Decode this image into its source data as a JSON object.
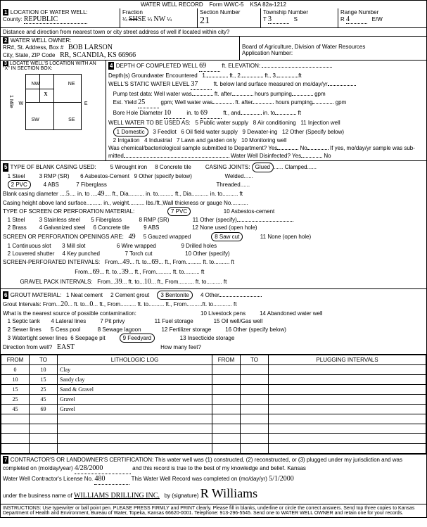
{
  "form": {
    "title": "WATER WELL RECORD",
    "formno": "Form WWC-5",
    "ksa": "KSA 82a-1212"
  },
  "sec1": {
    "title": "LOCATION OF WATER WELL:",
    "county_lbl": "County:",
    "county": "REPUBLIC",
    "fraction_lbl": "Fraction",
    "q1_struck": "SH",
    "q1": "SE",
    "q2": "NW",
    "section_lbl": "Section Number",
    "section": "21",
    "township_lbl": "Township Number",
    "township": "3",
    "ts": "S",
    "range_lbl": "Range Number",
    "range": "4",
    "ew": "E/W",
    "dist_lbl": "Distance and direction from nearest town or city street address of well if located within city?"
  },
  "sec2": {
    "title": "WATER WELL OWNER:",
    "addr_lbl": "RR#, St. Address, Box #",
    "name": "BOB LARSON",
    "csz_lbl": "City, State, ZIP Code",
    "csz": "RR, SCANDIA, KS 66966",
    "board": "Board of Agriculture, Division of Water Resources",
    "appno": "Application Number:"
  },
  "sec3": {
    "title": "LOCATE WELL'S LOCATION WITH AN \"X\" IN SECTION BOX:",
    "nw": "NW",
    "ne": "NE",
    "sw": "SW",
    "se": "SE",
    "w": "W",
    "e": "E",
    "mile": "1 Mile"
  },
  "sec4": {
    "title": "DEPTH OF COMPLETED WELL",
    "depth": "69",
    "ft_elev": "ft. ELEVATION:",
    "gw_enc": "Depth(s) Groundwater Encountered",
    "gw1": "1.",
    "gw2": "ft., 2.",
    "gw3": "ft., 3.",
    "swl_lbl": "WELL'S STATIC WATER LEVEL",
    "swl": "37",
    "swl_txt": "ft. below land surface measured on mo/day/yr",
    "pump_lbl": "Pump test data:   Well water was",
    "after": "ft. after",
    "hrs": "hours pumping",
    "gpm": "gpm",
    "est_lbl": "Est. Yield",
    "est": "25",
    "est_txt": "gpm;   Well water was",
    "after2": "ft. after",
    "hrs2": "hours pumping",
    "gpm2": "gpm",
    "bore_lbl": "Bore Hole Diameter",
    "bore": "10",
    "bore_to": "in. to",
    "bore_d": "69",
    "bore_ft": "ft., and",
    "bore_in": "in. to",
    "bore_ft2": "ft",
    "use_lbl": "WELL WATER TO BE USED AS:",
    "u1": "1 Domestic",
    "u2": "2 Irrigation",
    "u3": "3 Feedlot",
    "u4": "4 Industrial",
    "u5": "5 Public water supply",
    "u6": "6 Oil field water supply",
    "u7": "7 Lawn and garden only",
    "u8": "8 Air conditioning",
    "u9": "9 Dewater-ing",
    "u10": "10 Monitoring well",
    "u11": "11 Injection well",
    "u12": "12 Other (Specify below)",
    "chem": "Was chemical/bacteriological sample submitted to Department? Yes",
    "no": "No",
    "ifyes": "If yes, mo/day/yr sample was sub-",
    "mitted": "mitted",
    "disinf": "Water Well Disinfected?   Yes",
    "no2": "No"
  },
  "sec5": {
    "title": "TYPE OF BLANK CASING USED:",
    "joints": "CASING JOINTS:",
    "glued": "Glued",
    "clamped": "Clamped",
    "c1": "1 Steel",
    "c2": "2 PVC",
    "c3": "3 RMP (SR)",
    "c4": "4 ABS",
    "c5": "5 Wrought iron",
    "c6": "6 Asbestos-Cement",
    "c7": "7 Fiberglass",
    "c8": "8 Concrete tile",
    "c9": "9 Other (specify below)",
    "welded": "Welded",
    "threaded": "Threaded",
    "bcd": "Blank casing diameter",
    "bcd_v": "5",
    "bcd_to": "in. to",
    "bcd_d": "49",
    "bcd_ft": "ft., Dia",
    "bcd_in2": "in. to",
    "bcd_ft2": "ft., Dia.",
    "bcd_in3": "in. to",
    "bcd_ft3": "ft",
    "cht": "Casing height above land surface",
    "cht_in": "in., weight",
    "cht_lbs": "lbs./ft.,Wall thickness or gauge No.",
    "scr_title": "TYPE OF SCREEN OR PERFORATION MATERIAL:",
    "s1": "1 Steel",
    "s2": "2 Brass",
    "s3": "3 Stainless steel",
    "s4": "4 Galvanized steel",
    "s5": "5 Fiberglass",
    "s6": "6 Concrete tile",
    "s7": "7 PVC",
    "s8": "8 RMP (SR)",
    "s9": "9 ABS",
    "s10": "10 Asbestos-cement",
    "s11": "11 Other (specify)",
    "s12": "12 None used (open hole)",
    "open_title": "SCREEN OR PERFORATION OPENINGS ARE:",
    "open_v": "49",
    "o1": "1 Continuous slot",
    "o2": "2 Louvered shutter",
    "o3": "3 Mill slot",
    "o4": "4 Key punched",
    "o5": "5 Gauzed wrapped",
    "o6": "6 Wire wrapped",
    "o7": "7 Torch cut",
    "o8": "8 Saw cut",
    "o9": "9 Drilled holes",
    "o10": "10 Other (specify)",
    "o11": "11 None (open hole)",
    "spi": "SCREEN-PERFORATED INTERVALS:",
    "from": "From",
    "to": "ft. to",
    "ft": "ft., From",
    "ft2": "ft",
    "spi_f1": "49",
    "spi_t1": "69",
    "spi_f2": "69",
    "spi_t2": "39",
    "gpi": "GRAVEL PACK INTERVALS:",
    "gpi_f1": "39",
    "gpi_t1": "10"
  },
  "sec6": {
    "title": "GROUT MATERIAL:",
    "g1": "1 Neat cement",
    "g2": "2 Cement grout",
    "g3": "3 Bentonite",
    "g4": "4 Other",
    "gi": "Grout Intervals:  From",
    "gi_f": "20",
    "gi_to": "ft. to",
    "gi_t": "0",
    "gi_ft": "ft., From",
    "gi_to2": "ft. to",
    "gi_ft2": "ft., From",
    "gi_ft3": "ft",
    "near": "What is the nearest source of possible contamination:",
    "n1": "1 Septic tank",
    "n2": "2 Sewer lines",
    "n3": "3 Watertight sewer lines",
    "n4": "4 Lateral lines",
    "n5": "5 Cess pool",
    "n6": "6 Seepage pit",
    "n7": "7 Pit privy",
    "n8": "8 Sewage lagoon",
    "n9": "9 Feedyard",
    "n10": "10 Livestock pens",
    "n11": "11 Fuel storage",
    "n12": "12 Fertilizer storage",
    "n13": "13 Insecticide storage",
    "n14": "14 Abandoned water well",
    "n15": "15 Oil well/Gas well",
    "n16": "16 Other (specify below)",
    "dir_lbl": "Direction from well?",
    "dir": "EAST",
    "howmany": "How many feet?"
  },
  "log": {
    "h1": "FROM",
    "h2": "TO",
    "h3": "LITHOLOGIC LOG",
    "h4": "FROM",
    "h5": "TO",
    "h6": "PLUGGING INTERVALS",
    "rows": [
      {
        "f": "0",
        "t": "10",
        "d": "Clay"
      },
      {
        "f": "10",
        "t": "15",
        "d": "Sandy clay"
      },
      {
        "f": "15",
        "t": "25",
        "d": "Sand & Gravel"
      },
      {
        "f": "25",
        "t": "45",
        "d": "Gravel"
      },
      {
        "f": "45",
        "t": "69",
        "d": "Gravel"
      }
    ]
  },
  "sec7": {
    "cert": "CONTRACTOR'S OR LANDOWNER'S CERTIFICATION: This water well was (1) constructed, (2) reconstructed, or (3) plugged under my jurisdiction and was",
    "comp": "completed on (mo/day/year)",
    "date": "4/28/2000",
    "truth": "and this record is true to the best of my knowledge and belief. Kansas",
    "lic": "Water Well Contractor's License No.",
    "licno": "480",
    "compl": "This Water Well Record was completed on (mo/day/yr)",
    "biz": "under the business name of",
    "bizname": "WILLIAMS DRILLING INC.",
    "bysig": "by (signature)",
    "sig": "R Williams",
    "compldate": "5/1/2000"
  },
  "instr": "INSTRUCTIONS: Use typewriter or ball point pen. PLEASE PRESS FIRMLY and PRINT clearly. Please fill in blanks, underline or circle the correct answers. Send top three copies to Kansas Department of Health and Environment, Bureau of Water, Topeka, Kansas 66620-0001. Telephone: 913-296-5545. Send one to WATER WELL OWNER and retain one for your records."
}
